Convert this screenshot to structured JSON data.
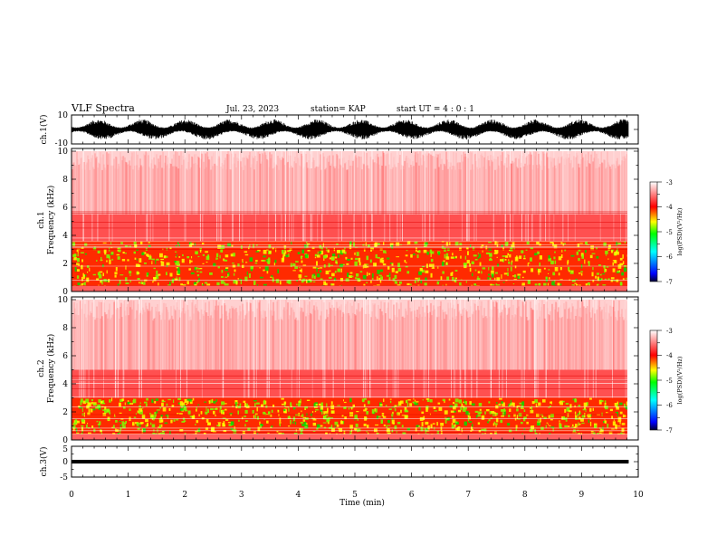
{
  "header": {
    "title": "VLF Spectra",
    "date": "Jul. 23, 2023",
    "station": "station= KAP",
    "start": "start  UT =   4 : 0  : 1"
  },
  "chart_data": [
    {
      "type": "line",
      "name": "ch1-waveform",
      "ylabel": "ch.1(V)",
      "ylim": [
        -10,
        10
      ],
      "yticks": [
        "10",
        "-10"
      ],
      "xlim": [
        0,
        10
      ],
      "data_extent_min": [
        0,
        9.83
      ],
      "envelope_approx": {
        "min": -7,
        "max": 7
      }
    },
    {
      "type": "heatmap",
      "name": "ch1-spectrogram",
      "ylabel": "ch.1",
      "ylabel2": "Frequency (kHz)",
      "ylim": [
        0,
        10
      ],
      "yticks": [
        "0",
        "2",
        "4",
        "6",
        "8",
        "10"
      ],
      "xlim": [
        0,
        10
      ],
      "data_extent_min": [
        0,
        9.83
      ],
      "bands_khz": {
        "strong_low": [
          0.4,
          3.6
        ],
        "moderate_mid": [
          3.6,
          5.5
        ],
        "weak_high": [
          5.5,
          10
        ]
      },
      "colorbar": {
        "label": "log(PSD)(V²/Hz)",
        "range": [
          -7,
          -3
        ],
        "ticks": [
          "-3",
          "-4",
          "-5",
          "-6",
          "-7"
        ],
        "colors": [
          "#000033",
          "#0000ff",
          "#00ffff",
          "#00ff00",
          "#ffff00",
          "#ff0000",
          "#ffffff"
        ]
      }
    },
    {
      "type": "heatmap",
      "name": "ch2-spectrogram",
      "ylabel": "ch.2",
      "ylabel2": "Frequency (kHz)",
      "ylim": [
        0,
        10
      ],
      "yticks": [
        "0",
        "2",
        "4",
        "6",
        "8",
        "10"
      ],
      "xlim": [
        0,
        10
      ],
      "data_extent_min": [
        0,
        9.83
      ],
      "bands_khz": {
        "strong_low": [
          0.4,
          3.0
        ],
        "moderate_mid": [
          3.0,
          5.0
        ],
        "weak_high": [
          5.0,
          10
        ]
      },
      "colorbar": {
        "label": "log(PSD)(V²/Hz)",
        "range": [
          -7,
          -3
        ],
        "ticks": [
          "-3",
          "-4",
          "-5",
          "-6",
          "-7"
        ],
        "colors": [
          "#000033",
          "#0000ff",
          "#00ffff",
          "#00ff00",
          "#ffff00",
          "#ff0000",
          "#ffffff"
        ]
      }
    },
    {
      "type": "line",
      "name": "ch3-waveform",
      "ylabel": "ch.3(V)",
      "ylim": [
        -5,
        5
      ],
      "yticks": [
        "5",
        "0",
        "-5"
      ],
      "xlim": [
        0,
        10
      ],
      "data_extent_min": [
        0,
        9.83
      ],
      "envelope_approx": {
        "min": -0.6,
        "max": 0.6
      }
    }
  ],
  "xaxis": {
    "label": "Time (min)",
    "ticks": [
      "0",
      "1",
      "2",
      "3",
      "4",
      "5",
      "6",
      "7",
      "8",
      "9",
      "10"
    ]
  }
}
